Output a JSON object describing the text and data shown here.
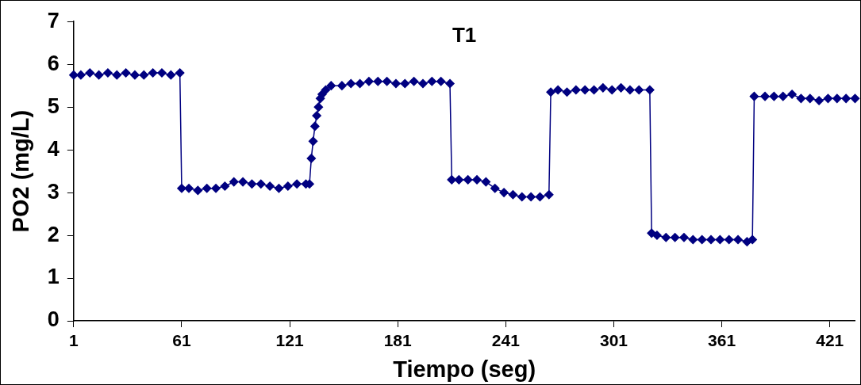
{
  "chart_data": {
    "type": "line",
    "title": "T1",
    "xlabel": "Tiempo (seg)",
    "ylabel": "PO2 (mg/L)",
    "xlim": [
      1,
      435
    ],
    "xticks": [
      1,
      61,
      121,
      181,
      241,
      301,
      361,
      421
    ],
    "ylim": [
      0,
      7
    ],
    "yticks": [
      0,
      1,
      2,
      3,
      4,
      5,
      6,
      7
    ],
    "grid": false,
    "legend": false,
    "marker": "diamond",
    "line_style": "solid",
    "series": [
      {
        "color": "#000080",
        "x": [
          1,
          5,
          10,
          15,
          20,
          25,
          30,
          35,
          40,
          45,
          50,
          55,
          60,
          61,
          65,
          70,
          75,
          80,
          85,
          90,
          95,
          100,
          105,
          110,
          115,
          120,
          125,
          130,
          132,
          133,
          134,
          135,
          136,
          137,
          138,
          139,
          141,
          144,
          150,
          155,
          160,
          165,
          170,
          175,
          180,
          185,
          190,
          195,
          200,
          205,
          210,
          211,
          215,
          220,
          225,
          230,
          235,
          240,
          245,
          250,
          255,
          260,
          265,
          266,
          270,
          275,
          280,
          285,
          290,
          295,
          300,
          305,
          310,
          315,
          321,
          322,
          325,
          330,
          335,
          340,
          345,
          350,
          355,
          360,
          365,
          370,
          375,
          378,
          379,
          385,
          390,
          395,
          400,
          405,
          410,
          415,
          420,
          425,
          430,
          435
        ],
        "values": [
          5.75,
          5.75,
          5.8,
          5.75,
          5.8,
          5.75,
          5.8,
          5.75,
          5.75,
          5.8,
          5.8,
          5.75,
          5.8,
          3.1,
          3.1,
          3.05,
          3.1,
          3.1,
          3.15,
          3.25,
          3.25,
          3.2,
          3.2,
          3.15,
          3.1,
          3.15,
          3.2,
          3.2,
          3.2,
          3.8,
          4.2,
          4.55,
          4.8,
          5.0,
          5.2,
          5.3,
          5.4,
          5.5,
          5.5,
          5.55,
          5.55,
          5.6,
          5.6,
          5.6,
          5.55,
          5.55,
          5.6,
          5.55,
          5.6,
          5.6,
          5.55,
          3.3,
          3.3,
          3.3,
          3.3,
          3.25,
          3.1,
          3.0,
          2.95,
          2.9,
          2.9,
          2.9,
          2.95,
          5.35,
          5.4,
          5.35,
          5.4,
          5.4,
          5.4,
          5.45,
          5.4,
          5.45,
          5.4,
          5.4,
          5.4,
          2.05,
          2.0,
          1.95,
          1.95,
          1.95,
          1.9,
          1.9,
          1.9,
          1.9,
          1.9,
          1.9,
          1.85,
          1.9,
          5.25,
          5.25,
          5.25,
          5.25,
          5.3,
          5.2,
          5.2,
          5.15,
          5.2,
          5.2,
          5.2,
          5.2
        ]
      }
    ]
  }
}
